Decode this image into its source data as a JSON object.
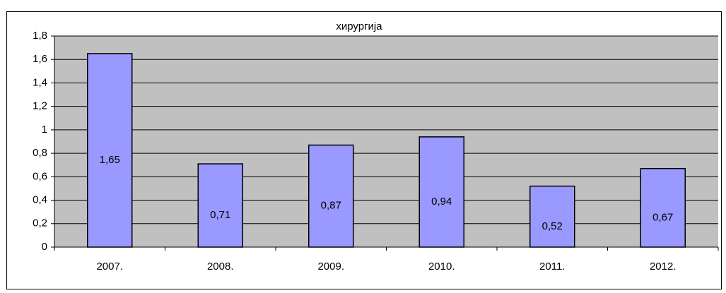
{
  "chart_data": {
    "type": "bar",
    "title": "хирургија",
    "categories": [
      "2007.",
      "2008.",
      "2009.",
      "2010.",
      "2011.",
      "2012."
    ],
    "values": [
      1.65,
      0.71,
      0.87,
      0.94,
      0.52,
      0.67
    ],
    "value_labels": [
      "1,65",
      "0,71",
      "0,87",
      "0,94",
      "0,52",
      "0,67"
    ],
    "color": "#9999ff",
    "ylim": [
      0,
      1.8
    ],
    "yticks": [
      0,
      {
        "value": 0.2,
        "label": "0,2"
      },
      {
        "value": 0.4,
        "label": "0,4"
      },
      {
        "value": 0.6,
        "label": "0,6"
      },
      {
        "value": 0.8,
        "label": "0,8"
      },
      1,
      {
        "value": 1.2,
        "label": "1,2"
      },
      {
        "value": 1.4,
        "label": "1,4"
      },
      {
        "value": 1.6,
        "label": "1,6"
      },
      {
        "value": 1.8,
        "label": "1,8"
      }
    ],
    "grid": true
  }
}
